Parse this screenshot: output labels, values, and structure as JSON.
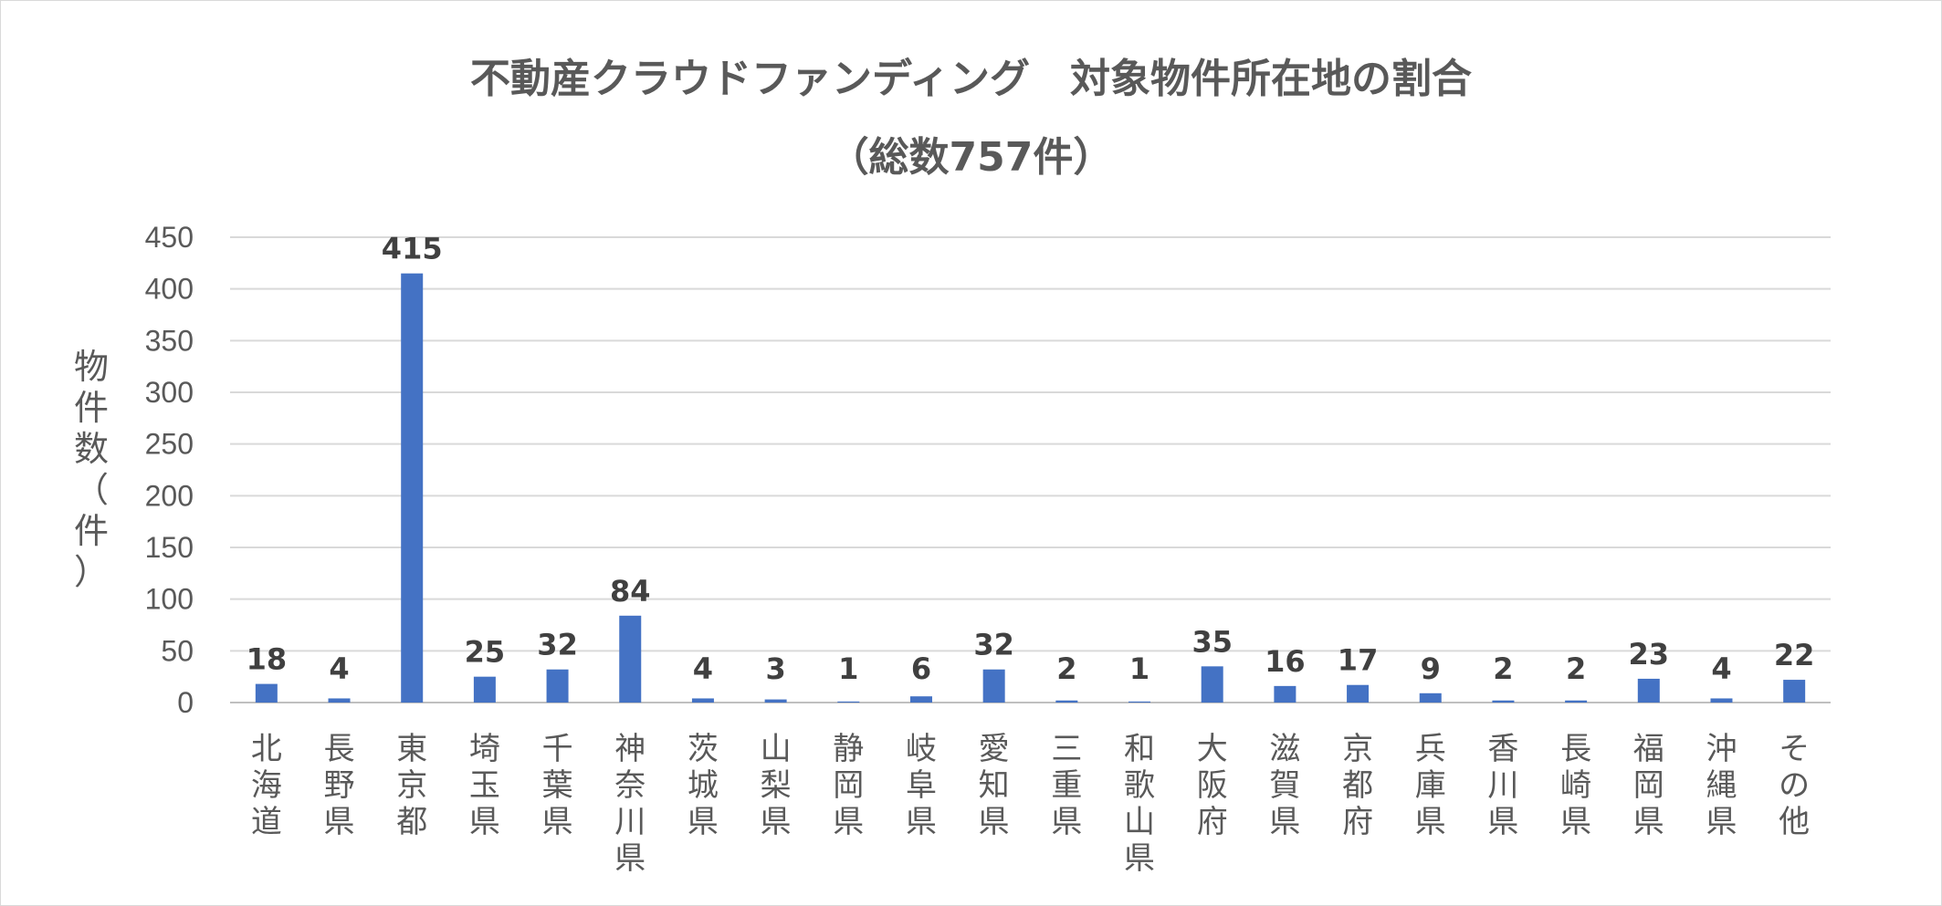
{
  "chart_data": {
    "type": "bar",
    "title": "不動産クラウドファンディング　対象物件所在地の割合",
    "subtitle": "（総数757件）",
    "ylabel": "物件数（件）",
    "xlabel": "",
    "ylim": [
      0,
      450
    ],
    "yticks": [
      0,
      50,
      100,
      150,
      200,
      250,
      300,
      350,
      400,
      450
    ],
    "grid": true,
    "bar_color": "#4472c4",
    "categories": [
      "北海道",
      "長野県",
      "東京都",
      "埼玉県",
      "千葉県",
      "神奈川県",
      "茨城県",
      "山梨県",
      "静岡県",
      "岐阜県",
      "愛知県",
      "三重県",
      "和歌山県",
      "大阪府",
      "滋賀県",
      "京都府",
      "兵庫県",
      "香川県",
      "長崎県",
      "福岡県",
      "沖縄県",
      "その他"
    ],
    "values": [
      18,
      4,
      415,
      25,
      32,
      84,
      4,
      3,
      1,
      6,
      32,
      2,
      1,
      35,
      16,
      17,
      9,
      2,
      2,
      23,
      4,
      22
    ]
  }
}
